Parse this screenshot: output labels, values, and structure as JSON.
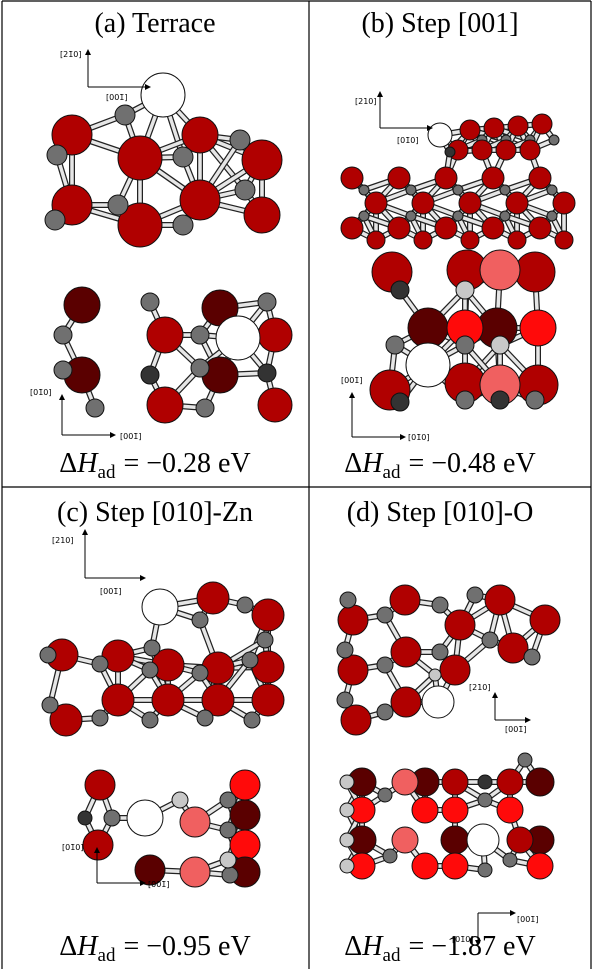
{
  "panels": [
    {
      "title": "(a) Terrace",
      "axes": [
        "[21̄0]",
        "[001̄]",
        "[01̄0]",
        "[001̄]"
      ],
      "energy": {
        "symbol": "Δ",
        "variable": "H",
        "subscript": "ad",
        "expression": "= −0.28 eV"
      }
    },
    {
      "title": "(b) Step [001]",
      "axes": [
        "[210]",
        "[01̄0]",
        "[001̄]",
        "[01̄0]"
      ],
      "energy": {
        "symbol": "Δ",
        "variable": "H",
        "subscript": "ad",
        "expression": "= −0.48 eV"
      }
    },
    {
      "title": "(c) Step [010]-Zn",
      "axes": [
        "[210]",
        "[001̄]",
        "[01̄0]",
        "[001̄]"
      ],
      "energy": {
        "symbol": "Δ",
        "variable": "H",
        "subscript": "ad",
        "expression": "= −0.95 eV"
      }
    },
    {
      "title": "(d) Step [010]-O",
      "axes": [
        "[210]",
        "[001̄]",
        "[001̄]",
        "[01̄0]"
      ],
      "energy": {
        "symbol": "Δ",
        "variable": "H",
        "subscript": "ad",
        "expression": "= −1.87 eV"
      }
    }
  ]
}
